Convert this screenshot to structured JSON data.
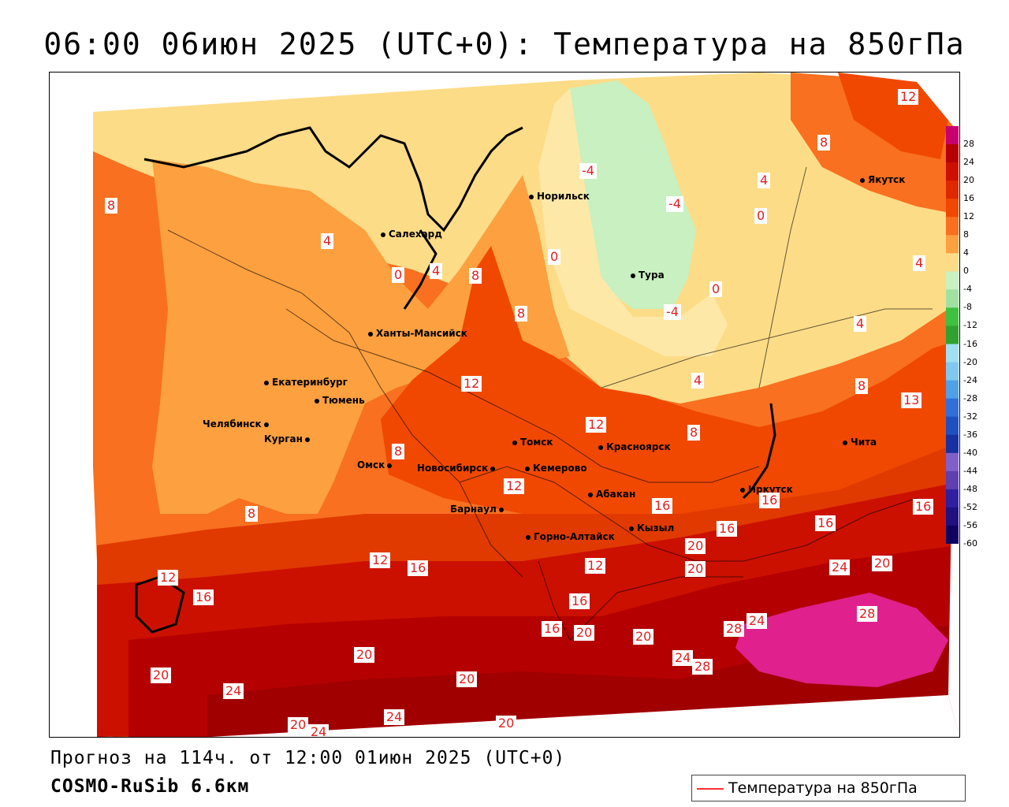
{
  "title": "06:00 06июн 2025 (UTC+0): Температура на 850гПа",
  "footer": {
    "forecast": "Прогноз на 114ч. от 12:00 01июн 2025 (UTC+0)",
    "model": "COSMO-RuSib 6.6км"
  },
  "legend": {
    "label": "Температура на 850гПа",
    "color": "#ff3030"
  },
  "color_scale": {
    "labels": [
      "28",
      "24",
      "20",
      "16",
      "12",
      "8",
      "4",
      "0",
      "-4",
      "-8",
      "-12",
      "-16",
      "-20",
      "-24",
      "-28",
      "-32",
      "-36",
      "-40",
      "-44",
      "-48",
      "-52",
      "-56",
      "-60"
    ],
    "colors": [
      "#c8006e",
      "#b40000",
      "#cc1000",
      "#e02800",
      "#f04800",
      "#f87020",
      "#fca040",
      "#fddc88",
      "#c8f0c0",
      "#a0e0a0",
      "#40c040",
      "#30a030",
      "#a0e0f0",
      "#80c8f0",
      "#50a0e8",
      "#3070d8",
      "#2050c0",
      "#1830a0",
      "#8060c8",
      "#6040b0",
      "#3020a0",
      "#201080",
      "#100060"
    ]
  },
  "cities": [
    {
      "name": "Салехард"
    },
    {
      "name": "Норильск"
    },
    {
      "name": "Якутск"
    },
    {
      "name": "Тура"
    },
    {
      "name": "Ханты-Мансийск"
    },
    {
      "name": "Екатеринбург"
    },
    {
      "name": "Тюмень"
    },
    {
      "name": "Челябинск"
    },
    {
      "name": "Курган"
    },
    {
      "name": "Омск"
    },
    {
      "name": "Новосибирск"
    },
    {
      "name": "Томск"
    },
    {
      "name": "Кемерово"
    },
    {
      "name": "Красноярск"
    },
    {
      "name": "Барнаул"
    },
    {
      "name": "Абакан"
    },
    {
      "name": "Иркутск"
    },
    {
      "name": "Чита"
    },
    {
      "name": "Кызыл"
    },
    {
      "name": "Горно-Алтайск"
    }
  ],
  "isolines": [
    "12",
    "8",
    "-4",
    "4",
    "-4",
    "0",
    "8",
    "4",
    "0",
    "4",
    "0",
    "8",
    "4",
    "0",
    "8",
    "4",
    "-4",
    "4",
    "12",
    "12",
    "8",
    "8",
    "8",
    "13",
    "8",
    "12",
    "16",
    "16",
    "16",
    "16",
    "16",
    "16",
    "12",
    "16",
    "12",
    "20",
    "20",
    "24",
    "20",
    "12",
    "16",
    "16",
    "20",
    "20",
    "28",
    "24",
    "28",
    "24",
    "28",
    "20",
    "20",
    "20",
    "24",
    "20",
    "24",
    "24",
    "20",
    "20"
  ]
}
